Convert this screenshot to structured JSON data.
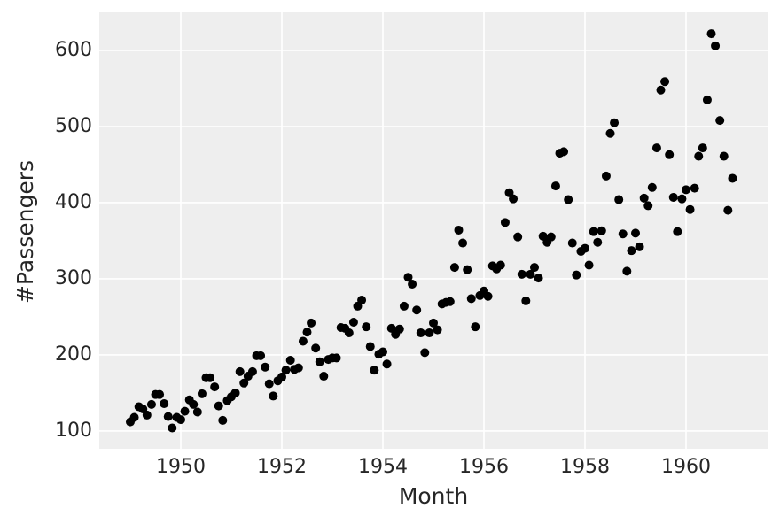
{
  "chart_data": {
    "type": "scatter",
    "x_label": "Month",
    "y_label": "#Passengers",
    "color": "#000000",
    "grid": true,
    "xlim": [
      1948.386,
      1961.614
    ],
    "ylim": [
      76.7,
      650
    ],
    "xticks": [
      1950,
      1952,
      1954,
      1956,
      1958,
      1960
    ],
    "yticks": [
      100,
      200,
      300,
      400,
      500,
      600
    ],
    "x": [
      1949.0,
      1949.08,
      1949.17,
      1949.25,
      1949.33,
      1949.42,
      1949.5,
      1949.58,
      1949.67,
      1949.75,
      1949.83,
      1949.92,
      1950.0,
      1950.08,
      1950.17,
      1950.25,
      1950.33,
      1950.42,
      1950.5,
      1950.58,
      1950.67,
      1950.75,
      1950.83,
      1950.92,
      1951.0,
      1951.08,
      1951.17,
      1951.25,
      1951.33,
      1951.42,
      1951.5,
      1951.58,
      1951.67,
      1951.75,
      1951.83,
      1951.92,
      1952.0,
      1952.08,
      1952.17,
      1952.25,
      1952.33,
      1952.42,
      1952.5,
      1952.58,
      1952.67,
      1952.75,
      1952.83,
      1952.92,
      1953.0,
      1953.08,
      1953.17,
      1953.25,
      1953.33,
      1953.42,
      1953.5,
      1953.58,
      1953.67,
      1953.75,
      1953.83,
      1953.92,
      1954.0,
      1954.08,
      1954.17,
      1954.25,
      1954.33,
      1954.42,
      1954.5,
      1954.58,
      1954.67,
      1954.75,
      1954.83,
      1954.92,
      1955.0,
      1955.08,
      1955.17,
      1955.25,
      1955.33,
      1955.42,
      1955.5,
      1955.58,
      1955.67,
      1955.75,
      1955.83,
      1955.92,
      1956.0,
      1956.08,
      1956.17,
      1956.25,
      1956.33,
      1956.42,
      1956.5,
      1956.58,
      1956.67,
      1956.75,
      1956.83,
      1956.92,
      1957.0,
      1957.08,
      1957.17,
      1957.25,
      1957.33,
      1957.42,
      1957.5,
      1957.58,
      1957.67,
      1957.75,
      1957.83,
      1957.92,
      1958.0,
      1958.08,
      1958.17,
      1958.25,
      1958.33,
      1958.42,
      1958.5,
      1958.58,
      1958.67,
      1958.75,
      1958.83,
      1958.92,
      1959.0,
      1959.08,
      1959.17,
      1959.25,
      1959.33,
      1959.42,
      1959.5,
      1959.58,
      1959.67,
      1959.75,
      1959.83,
      1959.92,
      1960.0,
      1960.08,
      1960.17,
      1960.25,
      1960.33,
      1960.42,
      1960.5,
      1960.58,
      1960.67,
      1960.75,
      1960.83,
      1960.92
    ],
    "values": [
      112,
      118,
      132,
      129,
      121,
      135,
      148,
      148,
      136,
      119,
      104,
      118,
      115,
      126,
      141,
      135,
      125,
      149,
      170,
      170,
      158,
      133,
      114,
      140,
      145,
      150,
      178,
      163,
      172,
      178,
      199,
      199,
      184,
      162,
      146,
      166,
      171,
      180,
      193,
      181,
      183,
      218,
      230,
      242,
      209,
      191,
      172,
      194,
      196,
      196,
      236,
      235,
      229,
      243,
      264,
      272,
      237,
      211,
      180,
      201,
      204,
      188,
      235,
      227,
      234,
      264,
      302,
      293,
      259,
      229,
      203,
      229,
      242,
      233,
      267,
      269,
      270,
      315,
      364,
      347,
      312,
      274,
      237,
      278,
      284,
      277,
      317,
      313,
      318,
      374,
      413,
      405,
      355,
      306,
      271,
      306,
      315,
      301,
      356,
      348,
      355,
      422,
      465,
      467,
      404,
      347,
      305,
      336,
      340,
      318,
      362,
      348,
      363,
      435,
      491,
      505,
      404,
      359,
      310,
      337,
      360,
      342,
      406,
      396,
      420,
      472,
      548,
      559,
      463,
      407,
      362,
      405,
      417,
      391,
      419,
      461,
      472,
      535,
      622,
      606,
      508,
      461,
      390,
      432
    ]
  }
}
